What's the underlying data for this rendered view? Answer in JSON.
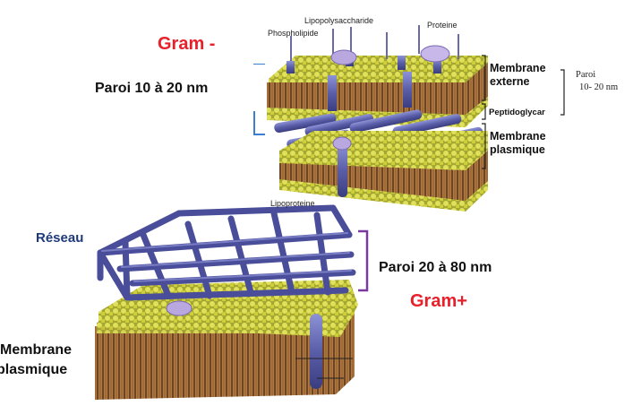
{
  "gram_neg": {
    "title": "Gram -",
    "wall_label": "Paroi 10 à 20 nm",
    "top_labels": {
      "phospholipide": "Phospholipide",
      "lps": "Lipopolysaccharide",
      "proteine": "Proteine"
    },
    "side_labels": {
      "outer_1": "Membrane",
      "outer_2": "externe",
      "peptido": "Peptidoglycar",
      "plasm_1": "Membrane",
      "plasm_2": "plasmique"
    },
    "right_note": {
      "line1": "Paroi",
      "line2": "10- 20 nm"
    },
    "lipoproteine": "Lipoproteine"
  },
  "gram_pos": {
    "reseau": "Réseau",
    "wall_label": "Paroi 20 à 80 nm",
    "title": "Gram+",
    "membrane_1": "Membrane",
    "membrane_2": "plasmique"
  },
  "colors": {
    "red": "#e8202a",
    "navy": "#1f3a7a",
    "bracket_blue": "#3a7fd0",
    "bracket_purple": "#7a3aa0",
    "rod": "#5a5ea8",
    "head": "#cfcf3a",
    "tail": "#8a5a2a"
  }
}
